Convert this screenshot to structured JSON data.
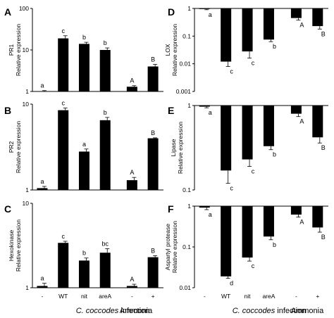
{
  "figure": {
    "x_group_left": [
      "C. coccodes",
      " infection"
    ],
    "x_group_right": "Ammonia",
    "x_ticks": [
      "-",
      "WT",
      "nit",
      "areA",
      "-",
      "+"
    ]
  },
  "chart_data": [
    {
      "type": "bar",
      "panel": "A",
      "log_y": true,
      "ylim": [
        1,
        100
      ],
      "ytick_labels": [
        "1",
        "10",
        "100"
      ],
      "ylabel": [
        "PR1",
        "Relative expression"
      ],
      "categories": [
        "-",
        "WT",
        "nit",
        "areA",
        "-",
        "+"
      ],
      "values": [
        1.0,
        19,
        14,
        10,
        1.3,
        4.0
      ],
      "errors": [
        0.05,
        3,
        1.3,
        1.2,
        0.08,
        0.5
      ],
      "letters": [
        "a",
        "c",
        "b",
        "b",
        "A",
        "B"
      ]
    },
    {
      "type": "bar",
      "panel": "B",
      "log_y": true,
      "ylim": [
        1,
        10
      ],
      "ytick_labels": [
        "1",
        "10"
      ],
      "ylabel": [
        "PR2",
        "Relative expression"
      ],
      "categories": [
        "-",
        "WT",
        "nit",
        "areA",
        "-",
        "+"
      ],
      "values": [
        1.05,
        8.5,
        2.8,
        6.5,
        1.3,
        4.0
      ],
      "errors": [
        0.05,
        0.5,
        0.2,
        0.5,
        0.1,
        0.05
      ],
      "letters": [
        "a",
        "c",
        "a",
        "b",
        "A",
        "B"
      ]
    },
    {
      "type": "bar",
      "panel": "C",
      "log_y": true,
      "ylim": [
        1,
        10
      ],
      "ytick_labels": [
        "1",
        "10"
      ],
      "ylabel": [
        "Hexokinase",
        "Relative expression"
      ],
      "categories": [
        "-",
        "WT",
        "nit",
        "areA",
        "-",
        "+"
      ],
      "values": [
        1.05,
        3.4,
        2.1,
        2.6,
        1.05,
        2.3
      ],
      "errors": [
        0.08,
        0.15,
        0.15,
        0.3,
        0.05,
        0.1
      ],
      "letters": [
        "a",
        "c",
        "b",
        "bc",
        "A",
        "B"
      ]
    },
    {
      "type": "bar",
      "panel": "D",
      "log_y": true,
      "ylim": [
        0.001,
        1
      ],
      "ytick_labels": [
        "0.001",
        "0.01",
        "0.1",
        "1"
      ],
      "ylabel": [
        "LOX",
        "Relative expression"
      ],
      "categories": [
        "-",
        "WT",
        "nit",
        "areA",
        "-",
        "+"
      ],
      "values": [
        0.95,
        0.012,
        0.028,
        0.075,
        0.45,
        0.23
      ],
      "errors": [
        0.05,
        0.004,
        0.012,
        0.012,
        0.07,
        0.05
      ],
      "letters": [
        "a",
        "c",
        "c",
        "b",
        "A",
        "B"
      ]
    },
    {
      "type": "bar",
      "panel": "E",
      "log_y": true,
      "ylim": [
        0.1,
        1
      ],
      "ytick_labels": [
        "0.1",
        "1"
      ],
      "ylabel": [
        "Lipase",
        "Relative expression"
      ],
      "categories": [
        "-",
        "WT",
        "nit",
        "areA",
        "-",
        "+"
      ],
      "values": [
        0.97,
        0.17,
        0.23,
        0.33,
        0.8,
        0.42
      ],
      "errors": [
        0.03,
        0.05,
        0.04,
        0.03,
        0.06,
        0.06
      ],
      "letters": [
        "a",
        "c",
        "c",
        "b",
        "A",
        "B"
      ]
    },
    {
      "type": "bar",
      "panel": "F",
      "log_y": true,
      "ylim": [
        0.01,
        1
      ],
      "ytick_labels": [
        "0.01",
        "0.1",
        "1"
      ],
      "ylabel": [
        "Aspartyl protease",
        "Relative expression"
      ],
      "categories": [
        "-",
        "WT",
        "nit",
        "areA",
        "-",
        "+"
      ],
      "values": [
        0.92,
        0.019,
        0.055,
        0.18,
        0.62,
        0.3
      ],
      "errors": [
        0.1,
        0.002,
        0.01,
        0.03,
        0.08,
        0.07
      ],
      "letters": [
        "a",
        "d",
        "c",
        "b",
        "A",
        "B"
      ]
    }
  ]
}
